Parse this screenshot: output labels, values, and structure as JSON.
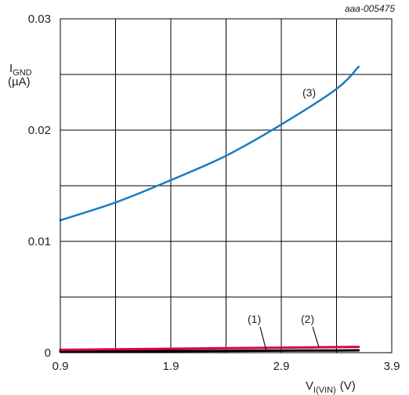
{
  "chart_data": {
    "type": "line",
    "reference": "aaa-005475",
    "ylabel": {
      "symbol": "I",
      "subscript": "GND",
      "unit": "(µA)"
    },
    "xlabel": {
      "symbol": "V",
      "subscript": "I(VIN)",
      "unit": "(V)"
    },
    "xlim": [
      0.9,
      3.9
    ],
    "ylim": [
      0,
      0.03
    ],
    "x_ticks": [
      "0.9",
      "1.9",
      "2.9",
      "3.9"
    ],
    "y_ticks": [
      "0",
      "0.01",
      "0.02",
      "0.03"
    ],
    "grid": true,
    "series": [
      {
        "name": "(1)",
        "color": "#000000",
        "x": [
          0.9,
          1.4,
          1.9,
          2.4,
          2.9,
          3.4,
          3.6
        ],
        "y": [
          0.0001,
          0.00012,
          0.00014,
          0.00016,
          0.00018,
          0.0002,
          0.00021
        ]
      },
      {
        "name": "(2)",
        "color": "#d6004f",
        "x": [
          0.9,
          1.4,
          1.9,
          2.4,
          2.9,
          3.4,
          3.6
        ],
        "y": [
          0.00025,
          0.0003,
          0.00035,
          0.0004,
          0.00045,
          0.0005,
          0.00052
        ]
      },
      {
        "name": "(3)",
        "color": "#1a7cc1",
        "x": [
          0.9,
          1.4,
          1.9,
          2.4,
          2.9,
          3.4,
          3.6
        ],
        "y": [
          0.0119,
          0.0135,
          0.0155,
          0.0177,
          0.0205,
          0.0237,
          0.0257
        ]
      }
    ]
  }
}
